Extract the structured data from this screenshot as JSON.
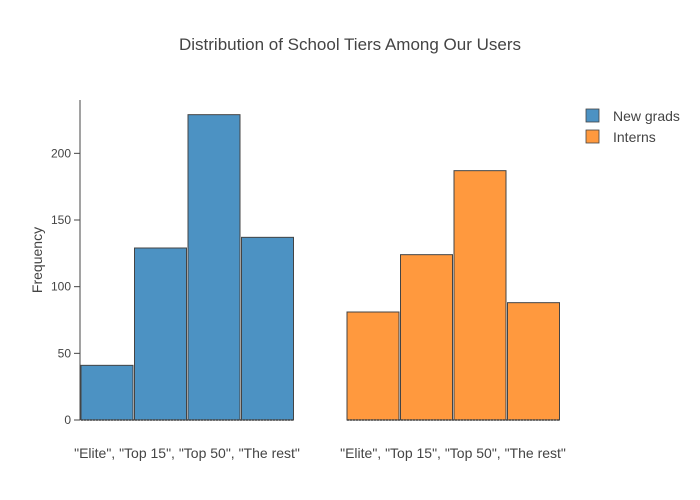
{
  "chart_data": {
    "type": "bar",
    "title": "Distribution of School Tiers Among Our Users",
    "ylabel": "Frequency",
    "ylim": [
      0,
      240
    ],
    "yticks": [
      0,
      50,
      100,
      150,
      200
    ],
    "grid": false,
    "legend_position": "top-right",
    "groups": [
      {
        "label": "\"Elite\", \"Top 15\", \"Top 50\", \"The rest\"",
        "series": "New grads",
        "values": [
          41,
          129,
          229,
          137
        ]
      },
      {
        "label": "\"Elite\", \"Top 15\", \"Top 50\", \"The rest\"",
        "series": "Interns",
        "values": [
          81,
          124,
          187,
          88
        ]
      }
    ],
    "series": [
      {
        "name": "New grads",
        "color": "#4c92c3",
        "edge_color": "#444444"
      },
      {
        "name": "Interns",
        "color": "#ff993e",
        "edge_color": "#444444"
      }
    ]
  }
}
